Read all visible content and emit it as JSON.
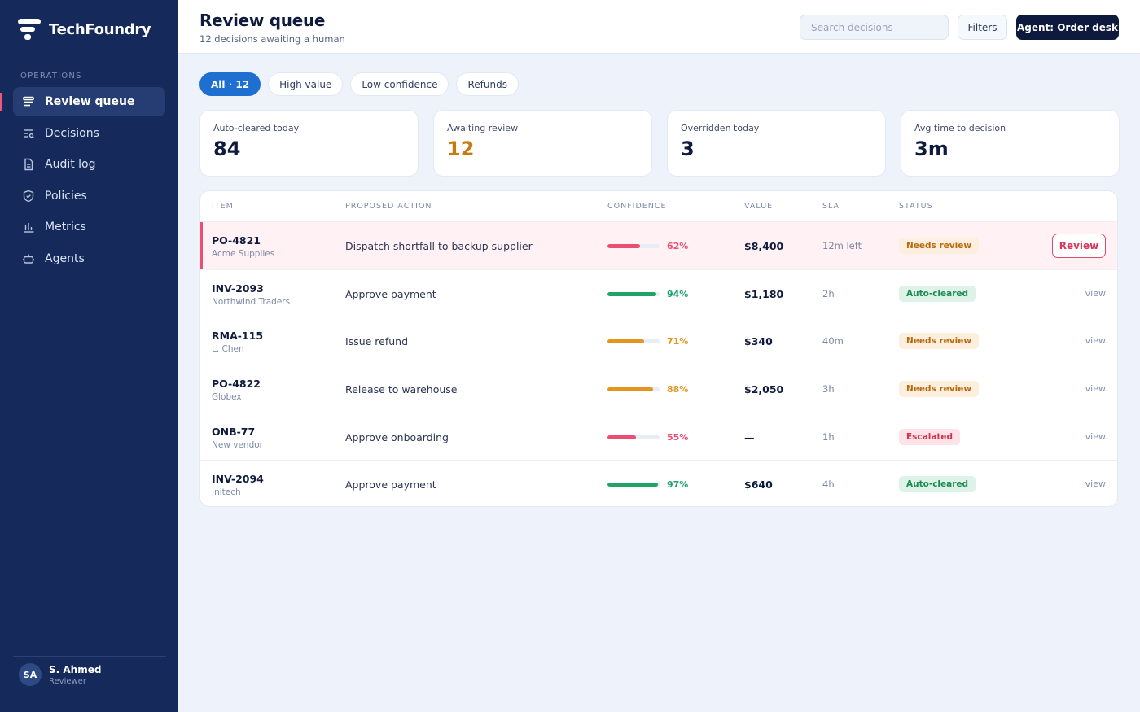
{
  "brand": {
    "name": "TechFoundry"
  },
  "sidebar": {
    "section_label": "OPERATIONS",
    "items": [
      {
        "label": "Review queue",
        "icon": "queue-icon",
        "active": true
      },
      {
        "label": "Decisions",
        "icon": "decisions-icon",
        "active": false
      },
      {
        "label": "Audit log",
        "icon": "document-icon",
        "active": false
      },
      {
        "label": "Policies",
        "icon": "shield-icon",
        "active": false
      },
      {
        "label": "Metrics",
        "icon": "bar-chart-icon",
        "active": false
      },
      {
        "label": "Agents",
        "icon": "agent-icon",
        "active": false
      }
    ],
    "user": {
      "initials": "SA",
      "name": "S. Ahmed",
      "role": "Reviewer"
    }
  },
  "header": {
    "title": "Review queue",
    "subtitle": "12 decisions awaiting a human",
    "search_placeholder": "Search decisions",
    "filters_label": "Filters",
    "agent_label": "Agent: Order desk"
  },
  "chips": [
    {
      "label": "All · 12",
      "active": true
    },
    {
      "label": "High value",
      "active": false
    },
    {
      "label": "Low confidence",
      "active": false
    },
    {
      "label": "Refunds",
      "active": false
    }
  ],
  "stats": [
    {
      "label": "Auto-cleared today",
      "value": "84"
    },
    {
      "label": "Awaiting review",
      "value": "12"
    },
    {
      "label": "Overridden today",
      "value": "3"
    },
    {
      "label": "Avg time to decision",
      "value": "3m"
    }
  ],
  "table": {
    "columns": [
      "ITEM",
      "PROPOSED ACTION",
      "CONFIDENCE",
      "VALUE",
      "SLA",
      "STATUS"
    ],
    "rows": [
      {
        "id": "PO-4821",
        "party": "Acme Supplies",
        "action": "Dispatch shortfall to backup supplier",
        "confidence": 62,
        "confidence_label": "62%",
        "value": "$8,400",
        "sla": "12m left",
        "status": "Needs review",
        "row_action": "Review"
      },
      {
        "id": "INV-2093",
        "party": "Northwind Traders",
        "action": "Approve payment",
        "confidence": 94,
        "confidence_label": "94%",
        "value": "$1,180",
        "sla": "2h",
        "status": "Auto-cleared",
        "row_action": "view"
      },
      {
        "id": "RMA-115",
        "party": "L. Chen",
        "action": "Issue refund",
        "confidence": 71,
        "confidence_label": "71%",
        "value": "$340",
        "sla": "40m",
        "status": "Needs review",
        "row_action": "view"
      },
      {
        "id": "PO-4822",
        "party": "Globex",
        "action": "Release to warehouse",
        "confidence": 88,
        "confidence_label": "88%",
        "value": "$2,050",
        "sla": "3h",
        "status": "Needs review",
        "row_action": "view"
      },
      {
        "id": "ONB-77",
        "party": "New vendor",
        "action": "Approve onboarding",
        "confidence": 55,
        "confidence_label": "55%",
        "value": "—",
        "sla": "1h",
        "status": "Escalated",
        "row_action": "view"
      },
      {
        "id": "INV-2094",
        "party": "Initech",
        "action": "Approve payment",
        "confidence": 97,
        "confidence_label": "97%",
        "value": "$640",
        "sla": "4h",
        "status": "Auto-cleared",
        "row_action": "view"
      }
    ]
  },
  "colors": {
    "sidebar_bg": "#152a5b",
    "accent_blue": "#1f6fd1",
    "danger": "#ec4d72",
    "warning": "#e3951f",
    "success": "#1fa36a"
  }
}
